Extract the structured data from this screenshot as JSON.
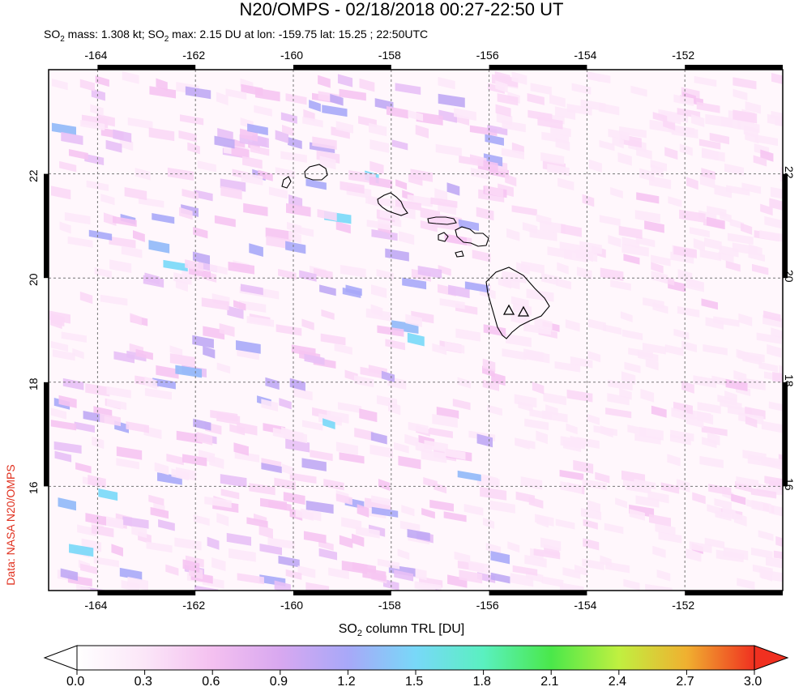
{
  "title": "N20/OMPS - 02/18/2018 00:27-22:50 UT",
  "subtitle": {
    "mass_prefix": "SO",
    "mass_sub": "2",
    "mass_text": " mass: 1.308 kt; SO",
    "max_sub": "2",
    "max_text": " max: 2.15 DU at lon: -159.75 lat: 15.25 ; 22:50UTC"
  },
  "credit": "Data: NASA N20/OMPS",
  "map": {
    "lon_ticks": [
      "-164",
      "-162",
      "-160",
      "-158",
      "-156",
      "-154",
      "-152"
    ],
    "lat_ticks": [
      "22",
      "20",
      "18",
      "16"
    ],
    "lon_values": [
      -164,
      -162,
      -160,
      -158,
      -156,
      -154,
      -152
    ],
    "lat_values": [
      22,
      20,
      18,
      16
    ],
    "lon_range": [
      -165.0,
      -150.0
    ],
    "lat_range": [
      14.0,
      24.0
    ],
    "grid": "dashed",
    "volcano_markers": [
      "triangle",
      "triangle"
    ]
  },
  "colorbar": {
    "label_prefix": "SO",
    "label_sub": "2",
    "label_text": " column TRL [DU]",
    "ticks": [
      "0.0",
      "0.3",
      "0.6",
      "0.9",
      "1.2",
      "1.5",
      "1.8",
      "2.1",
      "2.4",
      "2.7",
      "3.0"
    ],
    "range": [
      0.0,
      3.0
    ],
    "colors": [
      "#ffffff",
      "#f9d4f4",
      "#f0a0f0",
      "#c8a0f0",
      "#a0a0f8",
      "#78c8f8",
      "#6af0f0",
      "#4ae84a",
      "#a0f040",
      "#f0f040",
      "#f0a030",
      "#f03020"
    ]
  }
}
